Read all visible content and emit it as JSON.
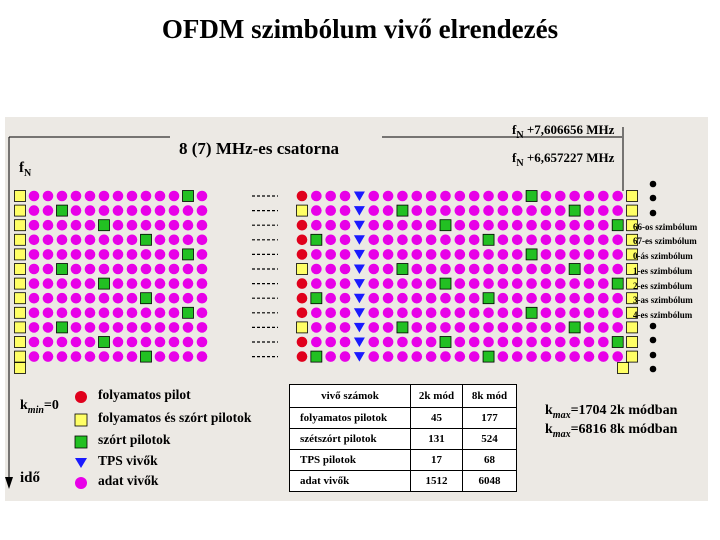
{
  "title": "OFDM szimbólum vivő elrendezés",
  "channel_label": "8 (7) MHz-es csatorna",
  "freq_labels": [
    {
      "prefix": "f",
      "sub": "N",
      "value": " +7,606656 MHz"
    },
    {
      "prefix": "f",
      "sub": "N",
      "value": " +6,657227 MHz"
    }
  ],
  "fn_label": {
    "prefix": "f",
    "sub": "N"
  },
  "kmin_label": {
    "k": "k",
    "sub": "min",
    "value": "=0"
  },
  "time_label": "idő",
  "kmax_labels": [
    {
      "k": "k",
      "sub": "max",
      "value": "=1704 2k módban"
    },
    {
      "k": "k",
      "sub": "max",
      "value": "=6816 8k módban"
    }
  ],
  "symbol_labels": [
    "66-os szimbólum",
    "67-es szimbólum",
    "0-ás szimbólum",
    "1-es szimbólum",
    "2-es szimbólum",
    "3-as szimbólum",
    "4-es szimbólum"
  ],
  "legend": [
    {
      "shape": "circle",
      "color": "#e0001c",
      "label": "folyamatos pilot"
    },
    {
      "shape": "square",
      "color": "#ffff66",
      "label": "folyamatos és szórt pilotok"
    },
    {
      "shape": "square",
      "color": "#22c022",
      "label": "szórt pilotok"
    },
    {
      "shape": "triangle",
      "color": "#1a1aff",
      "label": "TPS vivők"
    },
    {
      "shape": "circle",
      "color": "#e800e8",
      "label": "adat vivők"
    }
  ],
  "table": {
    "headers": [
      "vivő számok",
      "2k mód",
      "8k mód"
    ],
    "rows": [
      [
        "folyamatos pilotok",
        "45",
        "177"
      ],
      [
        "szétszórt pilotok",
        "131",
        "524"
      ],
      [
        "TPS pilotok",
        "17",
        "68"
      ],
      [
        "adat vivők",
        "1512",
        "6048"
      ]
    ]
  },
  "colors": {
    "data": "#e800e8",
    "continual": "#e0001c",
    "scattered": "#22c022",
    "both": "#ffff66",
    "tps": "#1a1aff",
    "panel": "#ece9e4"
  }
}
